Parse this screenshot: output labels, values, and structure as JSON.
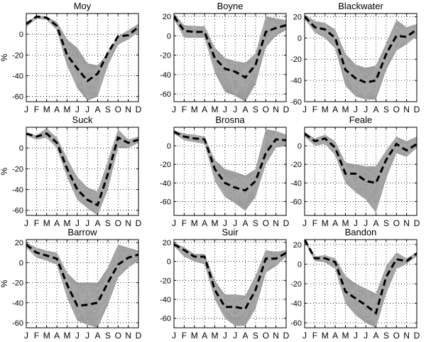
{
  "chart_data": [
    {
      "type": "line",
      "title": "Moy",
      "ylabel": "%",
      "ylim": [
        -65,
        20
      ],
      "yticks": [
        -60,
        -40,
        -20,
        0
      ],
      "categories": [
        "J",
        "F",
        "M",
        "A",
        "M",
        "J",
        "J",
        "A",
        "S",
        "O",
        "N",
        "D"
      ],
      "series": [
        {
          "name": "",
          "values": [
            10,
            17,
            16,
            8,
            -20,
            -33,
            -45,
            -38,
            -18,
            -2,
            -1,
            7
          ]
        }
      ],
      "ensemble": [
        {
          "values": [
            11,
            18,
            17,
            12,
            -5,
            -13,
            -28,
            -30,
            -18,
            -2,
            4,
            10
          ]
        },
        {
          "values": [
            7,
            15,
            14,
            4,
            -30,
            -52,
            -64,
            -60,
            -30,
            -10,
            -5,
            2
          ]
        }
      ],
      "grid": true
    },
    {
      "type": "line",
      "title": "Boyne",
      "ylabel": "",
      "ylim": [
        -68,
        23
      ],
      "yticks": [
        -60,
        -40,
        -20,
        0,
        20
      ],
      "categories": [
        "J",
        "F",
        "M",
        "A",
        "M",
        "J",
        "J",
        "A",
        "S",
        "O",
        "N",
        "D"
      ],
      "series": [
        {
          "name": "",
          "values": [
            20,
            5,
            4,
            4,
            -23,
            -34,
            -37,
            -43,
            -30,
            4,
            8,
            11
          ]
        }
      ],
      "ensemble": [
        {
          "values": [
            23,
            11,
            10,
            10,
            -12,
            -23,
            -26,
            -28,
            -18,
            20,
            18,
            16
          ]
        },
        {
          "values": [
            17,
            -2,
            -2,
            -2,
            -38,
            -58,
            -62,
            -68,
            -50,
            -12,
            0,
            6
          ]
        }
      ],
      "grid": true
    },
    {
      "type": "line",
      "title": "Blackwater",
      "ylabel": "",
      "ylim": [
        -60,
        23
      ],
      "yticks": [
        -60,
        -40,
        -20,
        0,
        20
      ],
      "categories": [
        "J",
        "F",
        "M",
        "A",
        "M",
        "J",
        "J",
        "A",
        "S",
        "O",
        "N",
        "D"
      ],
      "series": [
        {
          "name": "",
          "values": [
            20,
            10,
            8,
            0,
            -30,
            -38,
            -42,
            -40,
            -15,
            2,
            1,
            8
          ]
        }
      ],
      "ensemble": [
        {
          "values": [
            22,
            16,
            14,
            8,
            -15,
            -25,
            -28,
            -26,
            -5,
            17,
            10,
            13
          ]
        },
        {
          "values": [
            18,
            5,
            0,
            -10,
            -45,
            -55,
            -58,
            -58,
            -30,
            -12,
            -6,
            2
          ]
        }
      ],
      "grid": true
    },
    {
      "type": "line",
      "title": "Suck",
      "ylabel": "%",
      "ylim": [
        -65,
        20
      ],
      "yticks": [
        -60,
        -40,
        -20,
        0
      ],
      "categories": [
        "J",
        "F",
        "M",
        "A",
        "M",
        "J",
        "J",
        "A",
        "S",
        "O",
        "N",
        "D"
      ],
      "series": [
        {
          "name": "",
          "values": [
            14,
            11,
            14,
            5,
            -20,
            -40,
            -50,
            -55,
            -25,
            10,
            5,
            8
          ]
        }
      ],
      "ensemble": [
        {
          "values": [
            15,
            12,
            19,
            10,
            -10,
            -28,
            -38,
            -42,
            -12,
            18,
            8,
            11
          ]
        },
        {
          "values": [
            12,
            8,
            10,
            0,
            -28,
            -50,
            -58,
            -65,
            -40,
            0,
            0,
            5
          ]
        }
      ],
      "grid": true
    },
    {
      "type": "line",
      "title": "Brosna",
      "ylabel": "",
      "ylim": [
        -75,
        20
      ],
      "yticks": [
        -60,
        -40,
        -20,
        0
      ],
      "categories": [
        "J",
        "F",
        "M",
        "A",
        "M",
        "J",
        "J",
        "A",
        "S",
        "O",
        "N",
        "D"
      ],
      "series": [
        {
          "name": "",
          "values": [
            15,
            10,
            8,
            7,
            -25,
            -40,
            -45,
            -48,
            -38,
            -8,
            7,
            6
          ]
        }
      ],
      "ensemble": [
        {
          "values": [
            17,
            13,
            12,
            10,
            -15,
            -25,
            -28,
            -32,
            -25,
            18,
            16,
            12
          ]
        },
        {
          "values": [
            13,
            6,
            4,
            2,
            -38,
            -55,
            -62,
            -70,
            -55,
            -20,
            -2,
            0
          ]
        }
      ],
      "grid": true
    },
    {
      "type": "line",
      "title": "Feale",
      "ylabel": "",
      "ylim": [
        -75,
        20
      ],
      "yticks": [
        -60,
        -40,
        -20,
        0
      ],
      "categories": [
        "J",
        "F",
        "M",
        "A",
        "M",
        "J",
        "J",
        "A",
        "S",
        "O",
        "N",
        "D"
      ],
      "series": [
        {
          "name": "",
          "values": [
            13,
            5,
            8,
            -2,
            -30,
            -30,
            -38,
            -40,
            -15,
            2,
            -5,
            2
          ]
        }
      ],
      "ensemble": [
        {
          "values": [
            15,
            8,
            12,
            5,
            -18,
            -20,
            -22,
            -22,
            -5,
            10,
            5,
            10
          ]
        },
        {
          "values": [
            10,
            0,
            2,
            -10,
            -40,
            -50,
            -58,
            -72,
            -35,
            -8,
            -12,
            -2
          ]
        }
      ],
      "grid": true
    },
    {
      "type": "line",
      "title": "Barrow",
      "ylabel": "%",
      "ylim": [
        -65,
        23
      ],
      "yticks": [
        -60,
        -40,
        -20,
        0,
        20
      ],
      "categories": [
        "J",
        "F",
        "M",
        "A",
        "M",
        "J",
        "J",
        "A",
        "S",
        "O",
        "N",
        "D"
      ],
      "series": [
        {
          "name": "",
          "values": [
            18,
            10,
            7,
            4,
            -22,
            -43,
            -42,
            -40,
            -20,
            -2,
            5,
            8
          ]
        }
      ],
      "ensemble": [
        {
          "values": [
            20,
            15,
            12,
            10,
            -10,
            -20,
            -20,
            -20,
            -5,
            18,
            15,
            12
          ]
        },
        {
          "values": [
            15,
            5,
            2,
            -2,
            -35,
            -58,
            -62,
            -65,
            -42,
            -15,
            -5,
            2
          ]
        }
      ],
      "grid": true
    },
    {
      "type": "line",
      "title": "Suir",
      "ylabel": "",
      "ylim": [
        -70,
        23
      ],
      "yticks": [
        -60,
        -40,
        -20,
        0,
        20
      ],
      "categories": [
        "J",
        "F",
        "M",
        "A",
        "M",
        "J",
        "J",
        "A",
        "S",
        "O",
        "N",
        "D"
      ],
      "series": [
        {
          "name": "",
          "values": [
            18,
            12,
            5,
            5,
            -30,
            -48,
            -48,
            -50,
            -30,
            3,
            3,
            9
          ]
        }
      ],
      "ensemble": [
        {
          "values": [
            20,
            15,
            8,
            8,
            -20,
            -35,
            -35,
            -36,
            -15,
            12,
            10,
            12
          ]
        },
        {
          "values": [
            16,
            5,
            0,
            -3,
            -40,
            -60,
            -68,
            -68,
            -50,
            -12,
            -5,
            5
          ]
        }
      ],
      "grid": true
    },
    {
      "type": "line",
      "title": "Bandon",
      "ylabel": "",
      "ylim": [
        -65,
        25
      ],
      "yticks": [
        -60,
        -40,
        -20,
        0,
        20
      ],
      "categories": [
        "J",
        "F",
        "M",
        "A",
        "M",
        "J",
        "J",
        "A",
        "S",
        "O",
        "N",
        "D"
      ],
      "series": [
        {
          "name": "",
          "values": [
            25,
            6,
            6,
            2,
            -28,
            -35,
            -42,
            -50,
            -13,
            5,
            3,
            11
          ]
        }
      ],
      "ensemble": [
        {
          "values": [
            26,
            8,
            9,
            6,
            -12,
            -20,
            -25,
            -30,
            -2,
            12,
            6,
            12
          ]
        },
        {
          "values": [
            23,
            3,
            2,
            -5,
            -40,
            -52,
            -60,
            -65,
            -30,
            -5,
            0,
            8
          ]
        }
      ],
      "grid": true
    }
  ],
  "style": {
    "ensemble_color": "#8c8c8c",
    "median_color": "#000000"
  }
}
